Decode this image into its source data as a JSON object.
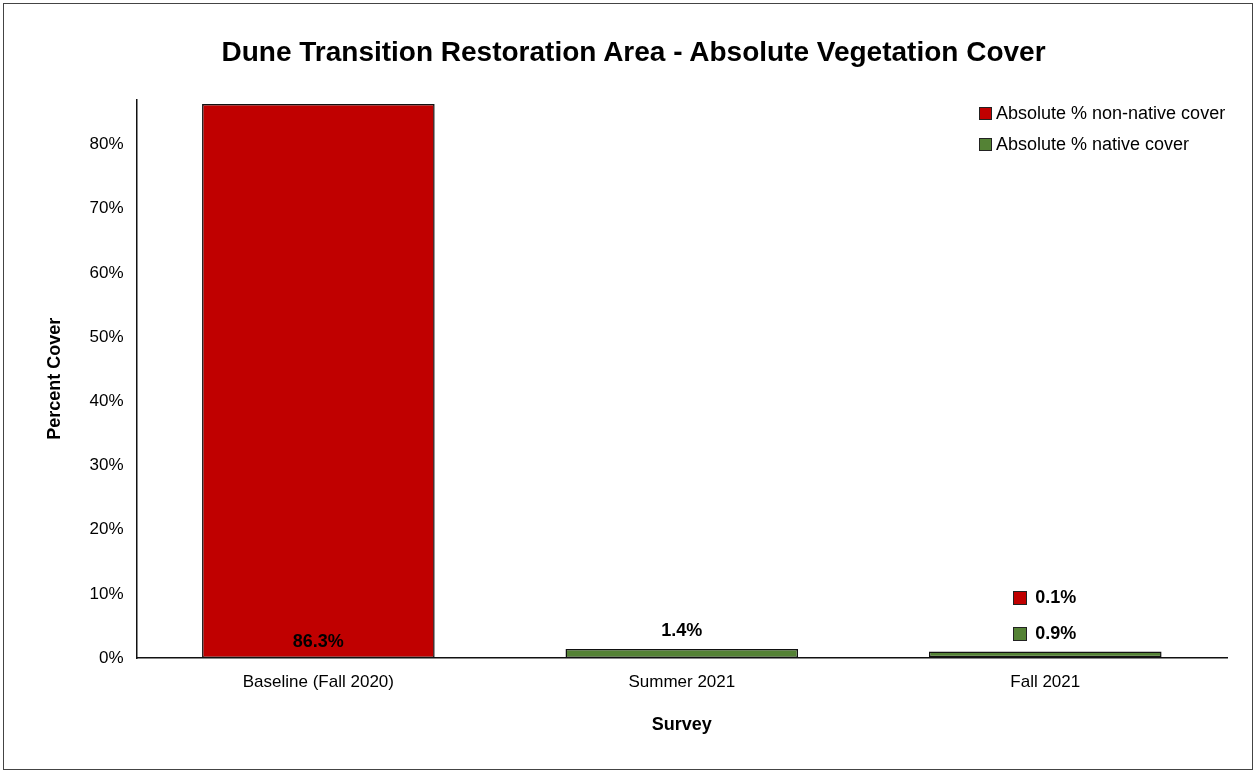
{
  "chart_data": {
    "type": "bar",
    "title": "Dune Transition Restoration Area - Absolute Vegetation Cover",
    "xlabel": "Survey",
    "ylabel": "Percent Cover",
    "categories": [
      "Baseline (Fall 2020)",
      "Summer 2021",
      "Fall 2021"
    ],
    "stacked": true,
    "series": [
      {
        "name": "Absolute % non-native cover",
        "color": "#c00000",
        "values": [
          86.3,
          null,
          0.1
        ],
        "value_labels": [
          "86.3%",
          null,
          "0.1%"
        ]
      },
      {
        "name": "Absolute % native cover",
        "color": "#548235",
        "values": [
          null,
          1.4,
          0.9
        ],
        "value_labels": [
          null,
          "1.4%",
          "0.9%"
        ]
      }
    ],
    "ylim": [
      0,
      87
    ],
    "yticks": [
      {
        "value": 0,
        "label": "0%"
      },
      {
        "value": 10,
        "label": "10%"
      },
      {
        "value": 20,
        "label": "20%"
      },
      {
        "value": 30,
        "label": "30%"
      },
      {
        "value": 40,
        "label": "40%"
      },
      {
        "value": 50,
        "label": "50%"
      },
      {
        "value": 60,
        "label": "60%"
      },
      {
        "value": 70,
        "label": "70%"
      },
      {
        "value": 80,
        "label": "80%"
      }
    ],
    "grid": false,
    "legend": "top right"
  }
}
